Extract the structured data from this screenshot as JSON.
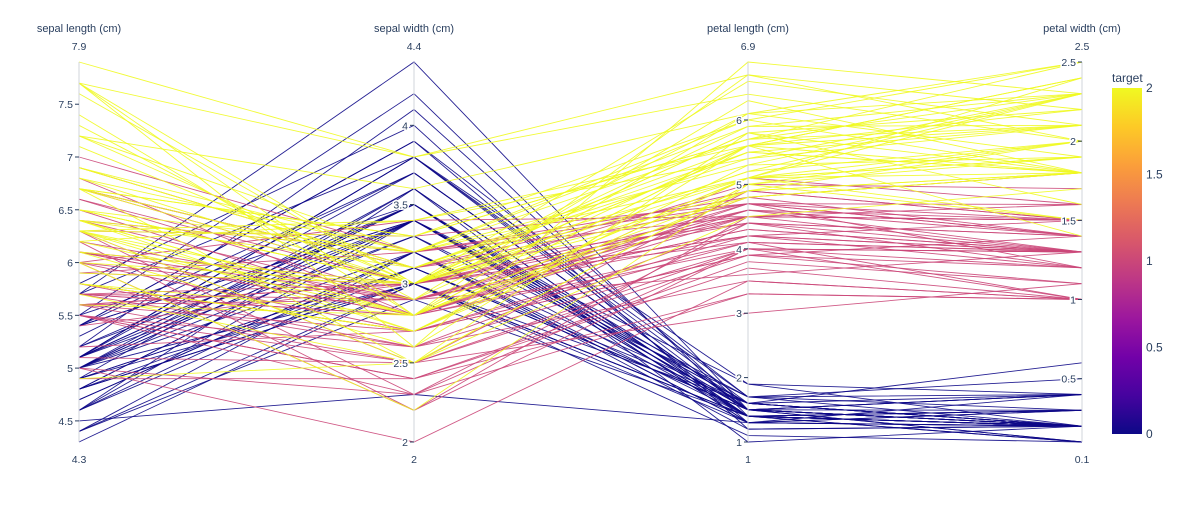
{
  "chart_data": {
    "type": "parcoords",
    "dimensions": [
      {
        "label": "sepal length (cm)",
        "range": [
          4.3,
          7.9
        ],
        "range_labels": [
          "4.3",
          "7.9"
        ],
        "ticks": [
          4.5,
          5,
          5.5,
          6,
          6.5,
          7,
          7.5
        ],
        "tick_labels": [
          "4.5",
          "5",
          "5.5",
          "6",
          "6.5",
          "7",
          "7.5"
        ]
      },
      {
        "label": "sepal width (cm)",
        "range": [
          2,
          4.4
        ],
        "range_labels": [
          "2",
          "4.4"
        ],
        "ticks": [
          2,
          2.5,
          3,
          3.5,
          4
        ],
        "tick_labels": [
          "2",
          "2.5",
          "3",
          "3.5",
          "4"
        ]
      },
      {
        "label": "petal length (cm)",
        "range": [
          1,
          6.9
        ],
        "range_labels": [
          "1",
          "6.9"
        ],
        "ticks": [
          1,
          2,
          3,
          4,
          5,
          6
        ],
        "tick_labels": [
          "1",
          "2",
          "3",
          "4",
          "5",
          "6"
        ]
      },
      {
        "label": "petal width (cm)",
        "range": [
          0.1,
          2.5
        ],
        "range_labels": [
          "0.1",
          "2.5"
        ],
        "ticks": [
          0.5,
          1,
          1.5,
          2,
          2.5
        ],
        "tick_labels": [
          "0.5",
          "1",
          "1.5",
          "2",
          "2.5"
        ]
      }
    ],
    "color_variable": "target",
    "colorscale": [
      "#0d0887",
      "#46039f",
      "#7201a8",
      "#9c179e",
      "#bd3786",
      "#d8576b",
      "#ed7953",
      "#fb9f3a",
      "#fdca26",
      "#f0f921"
    ],
    "colorbar": {
      "title": "target",
      "range": [
        0,
        2
      ],
      "ticks": [
        0,
        0.5,
        1,
        1.5,
        2
      ],
      "tick_labels": [
        "0",
        "0.5",
        "1",
        "1.5",
        "2"
      ]
    },
    "records": [
      [
        5.1,
        3.5,
        1.4,
        0.2,
        0
      ],
      [
        4.9,
        3.0,
        1.4,
        0.2,
        0
      ],
      [
        4.7,
        3.2,
        1.3,
        0.2,
        0
      ],
      [
        4.6,
        3.1,
        1.5,
        0.2,
        0
      ],
      [
        5.0,
        3.6,
        1.4,
        0.2,
        0
      ],
      [
        5.4,
        3.9,
        1.7,
        0.4,
        0
      ],
      [
        4.6,
        3.4,
        1.4,
        0.3,
        0
      ],
      [
        5.0,
        3.4,
        1.5,
        0.2,
        0
      ],
      [
        4.4,
        2.9,
        1.4,
        0.2,
        0
      ],
      [
        4.9,
        3.1,
        1.5,
        0.1,
        0
      ],
      [
        5.4,
        3.7,
        1.5,
        0.2,
        0
      ],
      [
        4.8,
        3.4,
        1.6,
        0.2,
        0
      ],
      [
        4.8,
        3.0,
        1.4,
        0.1,
        0
      ],
      [
        4.3,
        3.0,
        1.1,
        0.1,
        0
      ],
      [
        5.8,
        4.0,
        1.2,
        0.2,
        0
      ],
      [
        5.7,
        4.4,
        1.5,
        0.4,
        0
      ],
      [
        5.4,
        3.9,
        1.3,
        0.4,
        0
      ],
      [
        5.1,
        3.5,
        1.4,
        0.3,
        0
      ],
      [
        5.7,
        3.8,
        1.7,
        0.3,
        0
      ],
      [
        5.1,
        3.8,
        1.5,
        0.3,
        0
      ],
      [
        5.4,
        3.4,
        1.7,
        0.2,
        0
      ],
      [
        5.1,
        3.7,
        1.5,
        0.4,
        0
      ],
      [
        4.6,
        3.6,
        1.0,
        0.2,
        0
      ],
      [
        5.1,
        3.3,
        1.7,
        0.5,
        0
      ],
      [
        4.8,
        3.4,
        1.9,
        0.2,
        0
      ],
      [
        5.0,
        3.0,
        1.6,
        0.2,
        0
      ],
      [
        5.0,
        3.4,
        1.6,
        0.4,
        0
      ],
      [
        5.2,
        3.5,
        1.5,
        0.2,
        0
      ],
      [
        5.2,
        3.4,
        1.4,
        0.2,
        0
      ],
      [
        4.7,
        3.2,
        1.6,
        0.2,
        0
      ],
      [
        4.8,
        3.1,
        1.6,
        0.2,
        0
      ],
      [
        5.4,
        3.4,
        1.5,
        0.4,
        0
      ],
      [
        5.2,
        4.1,
        1.5,
        0.1,
        0
      ],
      [
        5.5,
        4.2,
        1.4,
        0.2,
        0
      ],
      [
        4.9,
        3.1,
        1.5,
        0.2,
        0
      ],
      [
        5.0,
        3.2,
        1.2,
        0.2,
        0
      ],
      [
        5.5,
        3.5,
        1.3,
        0.2,
        0
      ],
      [
        4.9,
        3.6,
        1.4,
        0.1,
        0
      ],
      [
        4.4,
        3.0,
        1.3,
        0.2,
        0
      ],
      [
        5.1,
        3.4,
        1.5,
        0.2,
        0
      ],
      [
        5.0,
        3.5,
        1.3,
        0.3,
        0
      ],
      [
        4.5,
        2.3,
        1.3,
        0.3,
        0
      ],
      [
        4.4,
        3.2,
        1.3,
        0.2,
        0
      ],
      [
        5.0,
        3.5,
        1.6,
        0.6,
        0
      ],
      [
        5.1,
        3.8,
        1.9,
        0.4,
        0
      ],
      [
        4.8,
        3.0,
        1.4,
        0.3,
        0
      ],
      [
        5.1,
        3.8,
        1.6,
        0.2,
        0
      ],
      [
        4.6,
        3.2,
        1.4,
        0.2,
        0
      ],
      [
        5.3,
        3.7,
        1.5,
        0.2,
        0
      ],
      [
        5.0,
        3.3,
        1.4,
        0.2,
        0
      ],
      [
        7.0,
        3.2,
        4.7,
        1.4,
        1
      ],
      [
        6.4,
        3.2,
        4.5,
        1.5,
        1
      ],
      [
        6.9,
        3.1,
        4.9,
        1.5,
        1
      ],
      [
        5.5,
        2.3,
        4.0,
        1.3,
        1
      ],
      [
        6.5,
        2.8,
        4.6,
        1.5,
        1
      ],
      [
        5.7,
        2.8,
        4.5,
        1.3,
        1
      ],
      [
        6.3,
        3.3,
        4.7,
        1.6,
        1
      ],
      [
        4.9,
        2.4,
        3.3,
        1.0,
        1
      ],
      [
        6.6,
        2.9,
        4.6,
        1.3,
        1
      ],
      [
        5.2,
        2.7,
        3.9,
        1.4,
        1
      ],
      [
        5.0,
        2.0,
        3.5,
        1.0,
        1
      ],
      [
        5.9,
        3.0,
        4.2,
        1.5,
        1
      ],
      [
        6.0,
        2.2,
        4.0,
        1.0,
        1
      ],
      [
        6.1,
        2.9,
        4.7,
        1.4,
        1
      ],
      [
        5.6,
        2.9,
        3.6,
        1.3,
        1
      ],
      [
        6.7,
        3.1,
        4.4,
        1.4,
        1
      ],
      [
        5.6,
        3.0,
        4.5,
        1.5,
        1
      ],
      [
        5.8,
        2.7,
        4.1,
        1.0,
        1
      ],
      [
        6.2,
        2.2,
        4.5,
        1.5,
        1
      ],
      [
        5.6,
        2.5,
        3.9,
        1.1,
        1
      ],
      [
        5.9,
        3.2,
        4.8,
        1.8,
        1
      ],
      [
        6.1,
        2.8,
        4.0,
        1.3,
        1
      ],
      [
        6.3,
        2.5,
        4.9,
        1.5,
        1
      ],
      [
        6.1,
        2.8,
        4.7,
        1.2,
        1
      ],
      [
        6.4,
        2.9,
        4.3,
        1.3,
        1
      ],
      [
        6.6,
        3.0,
        4.4,
        1.4,
        1
      ],
      [
        6.8,
        2.8,
        4.8,
        1.4,
        1
      ],
      [
        6.7,
        3.0,
        5.0,
        1.7,
        1
      ],
      [
        6.0,
        2.9,
        4.5,
        1.5,
        1
      ],
      [
        5.7,
        2.6,
        3.5,
        1.0,
        1
      ],
      [
        5.5,
        2.4,
        3.8,
        1.1,
        1
      ],
      [
        5.5,
        2.4,
        3.7,
        1.0,
        1
      ],
      [
        5.8,
        2.7,
        3.9,
        1.2,
        1
      ],
      [
        6.0,
        2.7,
        5.1,
        1.6,
        1
      ],
      [
        5.4,
        3.0,
        4.5,
        1.5,
        1
      ],
      [
        6.0,
        3.4,
        4.5,
        1.6,
        1
      ],
      [
        6.7,
        3.1,
        4.7,
        1.5,
        1
      ],
      [
        6.3,
        2.3,
        4.4,
        1.3,
        1
      ],
      [
        5.6,
        3.0,
        4.1,
        1.3,
        1
      ],
      [
        5.5,
        2.5,
        4.0,
        1.3,
        1
      ],
      [
        5.5,
        2.6,
        4.4,
        1.2,
        1
      ],
      [
        6.1,
        3.0,
        4.6,
        1.4,
        1
      ],
      [
        5.8,
        2.6,
        4.0,
        1.2,
        1
      ],
      [
        5.0,
        2.3,
        3.3,
        1.0,
        1
      ],
      [
        5.6,
        2.7,
        4.2,
        1.3,
        1
      ],
      [
        5.7,
        3.0,
        4.2,
        1.2,
        1
      ],
      [
        5.7,
        2.9,
        4.2,
        1.3,
        1
      ],
      [
        6.2,
        2.9,
        4.3,
        1.3,
        1
      ],
      [
        5.1,
        2.5,
        3.0,
        1.1,
        1
      ],
      [
        5.7,
        2.8,
        4.1,
        1.3,
        1
      ],
      [
        6.3,
        3.3,
        6.0,
        2.5,
        2
      ],
      [
        5.8,
        2.7,
        5.1,
        1.9,
        2
      ],
      [
        7.1,
        3.0,
        5.9,
        2.1,
        2
      ],
      [
        6.3,
        2.9,
        5.6,
        1.8,
        2
      ],
      [
        6.5,
        3.0,
        5.8,
        2.2,
        2
      ],
      [
        7.6,
        3.0,
        6.6,
        2.1,
        2
      ],
      [
        4.9,
        2.5,
        4.5,
        1.7,
        2
      ],
      [
        7.3,
        2.9,
        6.3,
        1.8,
        2
      ],
      [
        6.7,
        2.5,
        5.8,
        1.8,
        2
      ],
      [
        7.2,
        3.6,
        6.1,
        2.5,
        2
      ],
      [
        6.5,
        3.2,
        5.1,
        2.0,
        2
      ],
      [
        6.4,
        2.7,
        5.3,
        1.9,
        2
      ],
      [
        6.8,
        3.0,
        5.5,
        2.1,
        2
      ],
      [
        5.7,
        2.5,
        5.0,
        2.0,
        2
      ],
      [
        5.8,
        2.8,
        5.1,
        2.4,
        2
      ],
      [
        6.4,
        3.2,
        5.3,
        2.3,
        2
      ],
      [
        6.5,
        3.0,
        5.5,
        1.8,
        2
      ],
      [
        7.7,
        3.8,
        6.7,
        2.2,
        2
      ],
      [
        7.7,
        2.6,
        6.9,
        2.3,
        2
      ],
      [
        6.0,
        2.2,
        5.0,
        1.5,
        2
      ],
      [
        6.9,
        3.2,
        5.7,
        2.3,
        2
      ],
      [
        5.6,
        2.8,
        4.9,
        2.0,
        2
      ],
      [
        7.7,
        2.8,
        6.7,
        2.0,
        2
      ],
      [
        6.3,
        2.7,
        4.9,
        1.8,
        2
      ],
      [
        6.7,
        3.3,
        5.7,
        2.1,
        2
      ],
      [
        7.2,
        3.2,
        6.0,
        1.8,
        2
      ],
      [
        6.2,
        2.8,
        4.8,
        1.8,
        2
      ],
      [
        6.1,
        3.0,
        4.9,
        1.8,
        2
      ],
      [
        6.4,
        2.8,
        5.6,
        2.1,
        2
      ],
      [
        7.2,
        3.0,
        5.8,
        1.6,
        2
      ],
      [
        7.4,
        2.8,
        6.1,
        1.9,
        2
      ],
      [
        7.9,
        3.8,
        6.4,
        2.0,
        2
      ],
      [
        6.4,
        2.8,
        5.6,
        2.2,
        2
      ],
      [
        6.3,
        2.8,
        5.1,
        1.5,
        2
      ],
      [
        6.1,
        2.6,
        5.6,
        1.4,
        2
      ],
      [
        7.7,
        3.0,
        6.1,
        2.3,
        2
      ],
      [
        6.3,
        3.4,
        5.6,
        2.4,
        2
      ],
      [
        6.4,
        3.1,
        5.5,
        1.8,
        2
      ],
      [
        6.0,
        3.0,
        4.8,
        1.8,
        2
      ],
      [
        6.9,
        3.1,
        5.4,
        2.1,
        2
      ],
      [
        6.7,
        3.1,
        5.6,
        2.4,
        2
      ],
      [
        6.9,
        3.1,
        5.1,
        2.3,
        2
      ],
      [
        5.8,
        2.7,
        5.1,
        1.9,
        2
      ],
      [
        6.8,
        3.2,
        5.9,
        2.3,
        2
      ],
      [
        6.7,
        3.3,
        5.7,
        2.5,
        2
      ],
      [
        6.7,
        3.0,
        5.2,
        2.3,
        2
      ],
      [
        6.3,
        2.5,
        5.0,
        1.9,
        2
      ],
      [
        6.5,
        3.0,
        5.2,
        2.0,
        2
      ],
      [
        6.2,
        3.4,
        5.4,
        2.3,
        2
      ],
      [
        5.9,
        3.0,
        5.1,
        1.8,
        2
      ]
    ]
  }
}
